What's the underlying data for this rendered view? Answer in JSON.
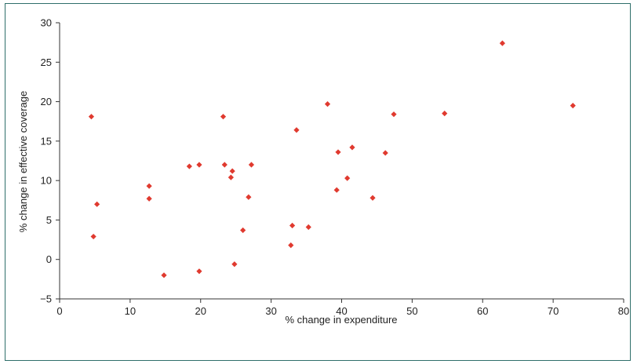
{
  "chart_data": {
    "type": "scatter",
    "title": "",
    "xlabel": "% change in expenditure",
    "ylabel": "% change in effective coverage",
    "xlim": [
      0,
      80
    ],
    "ylim": [
      -5,
      30
    ],
    "xticks": [
      0,
      10,
      20,
      30,
      40,
      50,
      60,
      70,
      80
    ],
    "yticks": [
      30,
      25,
      20,
      15,
      10,
      5,
      0,
      -5
    ],
    "ytick_labels": [
      "30",
      "25",
      "20",
      "15",
      "10",
      "5",
      "0",
      "−5"
    ],
    "grid": false,
    "legend": "none",
    "marker": "diamond",
    "marker_color": "#e03a2f",
    "series": [
      {
        "points": [
          {
            "x": 4.5,
            "y": 18.1
          },
          {
            "x": 4.8,
            "y": 2.9
          },
          {
            "x": 5.3,
            "y": 7.0
          },
          {
            "x": 12.7,
            "y": 9.3
          },
          {
            "x": 12.7,
            "y": 7.7
          },
          {
            "x": 14.8,
            "y": -2.0
          },
          {
            "x": 18.4,
            "y": 11.8
          },
          {
            "x": 19.8,
            "y": 12.0
          },
          {
            "x": 19.8,
            "y": -1.5
          },
          {
            "x": 23.2,
            "y": 18.1
          },
          {
            "x": 23.4,
            "y": 12.0
          },
          {
            "x": 24.3,
            "y": 10.4
          },
          {
            "x": 24.5,
            "y": 11.2
          },
          {
            "x": 24.8,
            "y": -0.6
          },
          {
            "x": 26.0,
            "y": 3.7
          },
          {
            "x": 26.8,
            "y": 7.9
          },
          {
            "x": 27.2,
            "y": 12.0
          },
          {
            "x": 32.8,
            "y": 1.8
          },
          {
            "x": 33.0,
            "y": 4.3
          },
          {
            "x": 33.6,
            "y": 16.4
          },
          {
            "x": 35.3,
            "y": 4.1
          },
          {
            "x": 38.0,
            "y": 19.7
          },
          {
            "x": 39.3,
            "y": 8.8
          },
          {
            "x": 39.5,
            "y": 13.6
          },
          {
            "x": 40.8,
            "y": 10.3
          },
          {
            "x": 41.5,
            "y": 14.2
          },
          {
            "x": 44.4,
            "y": 7.8
          },
          {
            "x": 46.2,
            "y": 13.5
          },
          {
            "x": 47.4,
            "y": 18.4
          },
          {
            "x": 54.6,
            "y": 18.5
          },
          {
            "x": 62.8,
            "y": 27.4
          },
          {
            "x": 72.8,
            "y": 19.5
          }
        ]
      }
    ]
  }
}
